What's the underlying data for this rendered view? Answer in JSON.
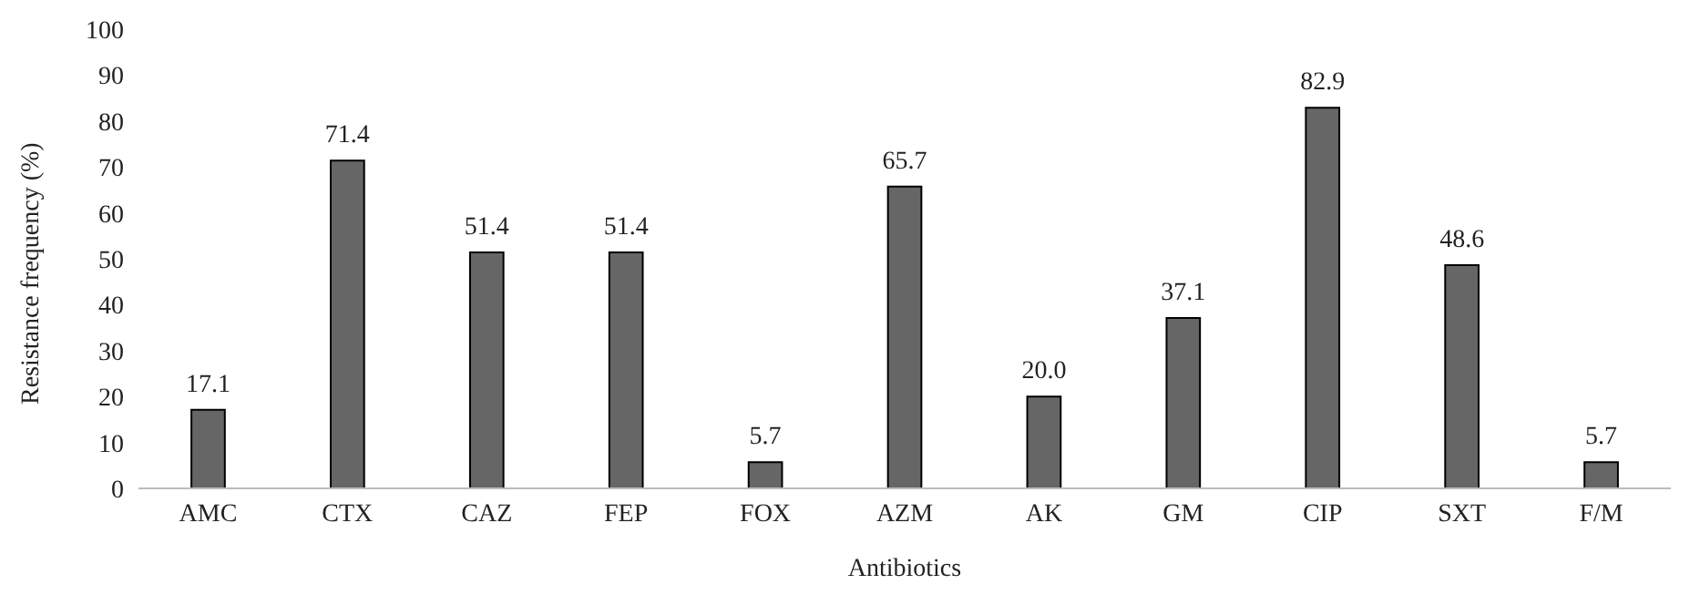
{
  "chart_data": {
    "type": "bar",
    "xlabel": "Antibiotics",
    "ylabel": "Resistance frequency (%)",
    "categories": [
      "AMC",
      "CTX",
      "CAZ",
      "FEP",
      "FOX",
      "AZM",
      "AK",
      "GM",
      "CIP",
      "SXT",
      "F/M"
    ],
    "values": [
      17.1,
      71.4,
      51.4,
      51.4,
      5.7,
      65.7,
      20.0,
      37.1,
      82.9,
      48.6,
      5.7
    ],
    "value_labels": [
      "17.1",
      "71.4",
      "51.4",
      "51.4",
      "5.7",
      "65.7",
      "20.0",
      "37.1",
      "82.9",
      "48.6",
      "5.7"
    ],
    "color": "#666666",
    "ylim": [
      0,
      100
    ],
    "yticks": [
      0,
      10,
      20,
      30,
      40,
      50,
      60,
      70,
      80,
      90,
      100
    ],
    "grid": false,
    "legend": false
  }
}
